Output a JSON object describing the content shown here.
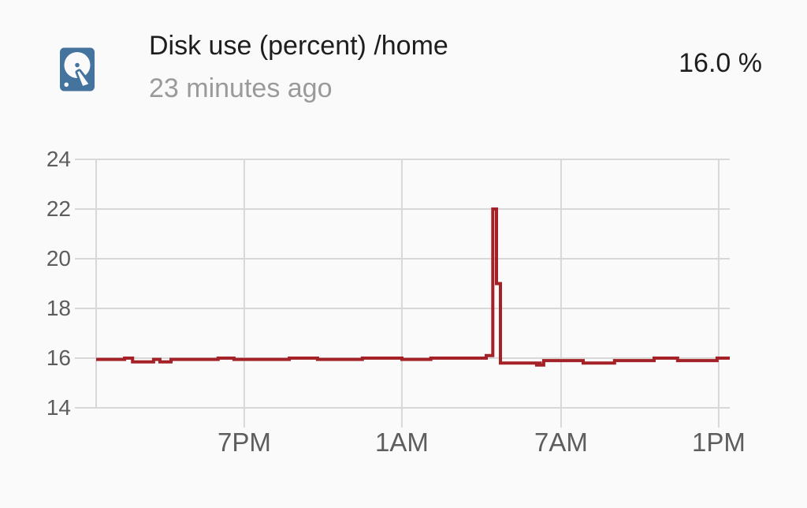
{
  "header": {
    "icon": "harddisk-icon",
    "icon_color": "#44739e",
    "title": "Disk use (percent) /home",
    "last_changed": "23 minutes ago",
    "value": "16.0 %"
  },
  "colors": {
    "background": "#fafafa",
    "grid": "#d8d8d8",
    "axis_label": "#5d5d5d",
    "primary_text": "#1e1e1e",
    "secondary_text": "#9a9a9a",
    "line": "#a32127",
    "icon": "#44739e"
  },
  "chart_data": {
    "type": "line",
    "line_style": "step-after",
    "title": "Disk use (percent) /home history",
    "xlabel": "",
    "ylabel": "",
    "x_unit": "hours from chart start (~24h window)",
    "x_range": [
      0,
      24.04
    ],
    "ylim": [
      14,
      24
    ],
    "y_ticks": [
      14,
      16,
      18,
      20,
      22,
      24
    ],
    "x_ticks": [
      {
        "t": 5.62,
        "label": "7PM"
      },
      {
        "t": 11.6,
        "label": "1AM"
      },
      {
        "t": 17.64,
        "label": "7AM"
      },
      {
        "t": 23.62,
        "label": "1PM"
      }
    ],
    "grid": true,
    "legend": "none",
    "series": [
      {
        "name": "Disk use (percent) /home",
        "color": "#a32127",
        "points": [
          [
            0.0,
            15.95
          ],
          [
            1.08,
            16.0
          ],
          [
            1.38,
            15.85
          ],
          [
            2.18,
            15.95
          ],
          [
            2.42,
            15.85
          ],
          [
            2.84,
            15.95
          ],
          [
            4.63,
            16.0
          ],
          [
            5.23,
            15.95
          ],
          [
            7.33,
            16.0
          ],
          [
            8.4,
            15.95
          ],
          [
            10.1,
            16.0
          ],
          [
            11.6,
            15.95
          ],
          [
            12.7,
            16.0
          ],
          [
            14.8,
            16.1
          ],
          [
            15.05,
            22.0
          ],
          [
            15.19,
            19.0
          ],
          [
            15.34,
            15.8
          ],
          [
            16.71,
            15.72
          ],
          [
            16.8,
            15.8
          ],
          [
            16.85,
            15.72
          ],
          [
            16.98,
            15.9
          ],
          [
            18.48,
            15.8
          ],
          [
            19.67,
            15.9
          ],
          [
            21.17,
            16.0
          ],
          [
            22.06,
            15.9
          ],
          [
            23.56,
            16.0
          ],
          [
            24.04,
            16.0
          ]
        ]
      }
    ]
  }
}
